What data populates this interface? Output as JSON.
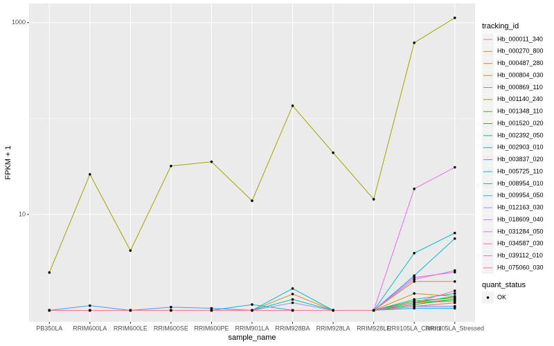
{
  "chart_data": {
    "type": "line",
    "x_label": "sample_name",
    "y_label": "FPKM + 1",
    "categories": [
      "PB350LA",
      "RRIM600LA",
      "RRIM600LE",
      "RRIM600SE",
      "RRIM600PE",
      "RRIM901LA",
      "RRIM928BA",
      "RRIM928LA",
      "RRIM928LE",
      "RRII105LA_Control",
      "RRII105LA_Stressed"
    ],
    "log_y": true,
    "grid": true,
    "ylim": [
      0.76,
      1585
    ],
    "yticks": [
      10,
      1000
    ],
    "legend_title": "tracking_id",
    "legend_position": "right",
    "shape_legend": {
      "title": "quant_status",
      "labels": [
        "OK"
      ],
      "color": "#000000"
    },
    "series": [
      {
        "name": "Hb_000011_340",
        "color": "#F8766D",
        "values": [
          1,
          1,
          1,
          1,
          1,
          1,
          1,
          1,
          1,
          1.2,
          1.3
        ]
      },
      {
        "name": "Hb_000270_800",
        "color": "#EA8331",
        "values": [
          1,
          1,
          1,
          1,
          1,
          1,
          1.48,
          1,
          1,
          2.0,
          2.0
        ]
      },
      {
        "name": "Hb_000487_280",
        "color": "#D89000",
        "values": [
          1,
          1,
          1,
          1,
          1,
          1,
          1,
          1,
          1,
          1.5,
          1.4
        ]
      },
      {
        "name": "Hb_000804_030",
        "color": "#C09B00",
        "values": [
          1,
          1,
          1,
          1,
          1,
          1,
          1,
          1,
          1,
          1.2,
          1.25
        ]
      },
      {
        "name": "Hb_000869_110",
        "color": "#A3A500",
        "values": [
          2.48,
          26.2,
          4.2,
          32,
          35.4,
          13.9,
          136,
          44,
          14.4,
          617,
          1122
        ]
      },
      {
        "name": "Hb_001140_240",
        "color": "#7CAE00",
        "values": [
          1,
          1,
          1,
          1,
          1,
          1,
          1,
          1,
          1,
          1.1,
          1.2
        ]
      },
      {
        "name": "Hb_001348_110",
        "color": "#39B600",
        "values": [
          1,
          1,
          1,
          1,
          1,
          1,
          1,
          1,
          1,
          1.25,
          1.35
        ]
      },
      {
        "name": "Hb_001520_020",
        "color": "#00BB4E",
        "values": [
          1,
          1,
          1,
          1,
          1,
          1,
          1,
          1,
          1,
          1.15,
          1.3
        ]
      },
      {
        "name": "Hb_002392_050",
        "color": "#00BF7D",
        "values": [
          1,
          1,
          1,
          1,
          1,
          1,
          1,
          1,
          1,
          1.2,
          1.4
        ]
      },
      {
        "name": "Hb_002903_010",
        "color": "#00C1A3",
        "values": [
          1,
          1,
          1,
          1,
          1,
          1,
          1.3,
          1,
          1,
          1.3,
          1.5
        ]
      },
      {
        "name": "Hb_003837_020",
        "color": "#00BFC4",
        "values": [
          1,
          1,
          1,
          1,
          1,
          1,
          1.69,
          1,
          1,
          3.95,
          6.4
        ]
      },
      {
        "name": "Hb_005725_110",
        "color": "#00BAE0",
        "values": [
          1,
          1,
          1,
          1,
          1,
          1.15,
          1,
          1,
          1,
          2.3,
          5.6
        ]
      },
      {
        "name": "Hb_008954_010",
        "color": "#00B0F6",
        "values": [
          1,
          1,
          1,
          1,
          1,
          1,
          1,
          1,
          1,
          1.05,
          1.05
        ]
      },
      {
        "name": "Hb_009954_050",
        "color": "#35A2FF",
        "values": [
          1,
          1.12,
          1,
          1.08,
          1.05,
          1,
          1,
          1,
          1,
          1.1,
          1.1
        ]
      },
      {
        "name": "Hb_012163_030",
        "color": "#9590FF",
        "values": [
          1,
          1,
          1,
          1,
          1,
          1,
          1.2,
          1,
          1,
          1.1,
          1.1
        ]
      },
      {
        "name": "Hb_018609_040",
        "color": "#C77CFF",
        "values": [
          1,
          1,
          1,
          1,
          1,
          1,
          1,
          1,
          1,
          2.1,
          2.6
        ]
      },
      {
        "name": "Hb_031284_050",
        "color": "#E76BF3",
        "values": [
          1,
          1,
          1,
          1,
          1,
          1,
          1,
          1,
          1,
          18.5,
          31
        ]
      },
      {
        "name": "Hb_034587_030",
        "color": "#FA62DB",
        "values": [
          1,
          1,
          1,
          1,
          1,
          1,
          1,
          1,
          1,
          2.2,
          2.5
        ]
      },
      {
        "name": "Hb_039112_010",
        "color": "#FF62BC",
        "values": [
          1,
          1,
          1,
          1,
          1,
          1,
          1,
          1,
          1,
          1.2,
          1.6
        ]
      },
      {
        "name": "Hb_075060_030",
        "color": "#FF6C91",
        "values": [
          1,
          1,
          1,
          1,
          1,
          1,
          1,
          1,
          1,
          1.1,
          1.2
        ]
      }
    ]
  }
}
